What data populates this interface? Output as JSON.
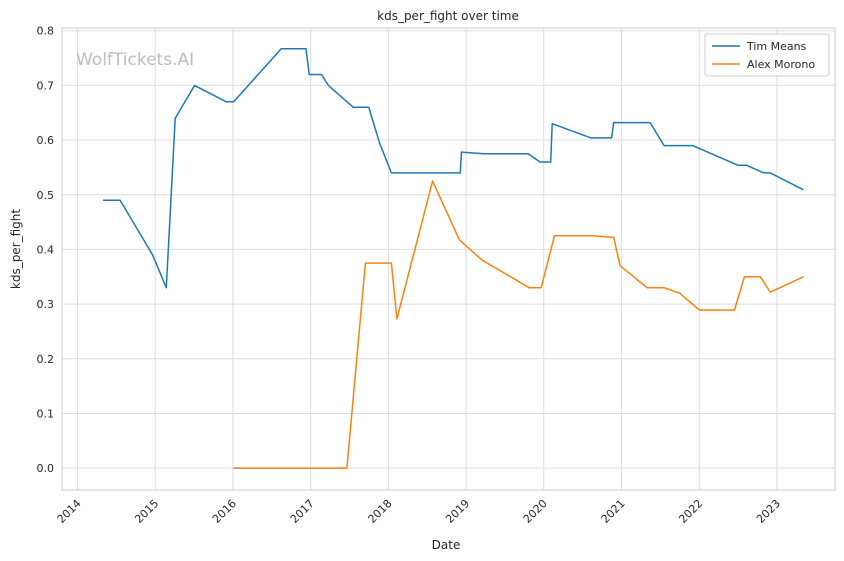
{
  "chart_data": {
    "type": "line",
    "title": "kds_per_fight over time",
    "xlabel": "Date",
    "ylabel": "kds_per_fight",
    "watermark": "WolfTickets.AI",
    "x_ticks": [
      "2014",
      "2015",
      "2016",
      "2017",
      "2018",
      "2019",
      "2020",
      "2021",
      "2022",
      "2023"
    ],
    "y_ticks": [
      "0.0",
      "0.1",
      "0.2",
      "0.3",
      "0.4",
      "0.5",
      "0.6",
      "0.7",
      "0.8"
    ],
    "xlim": [
      "2013-10-20",
      "2023-10-01"
    ],
    "ylim": [
      -0.04,
      0.805
    ],
    "grid": true,
    "legend_position": "top-right",
    "series": [
      {
        "name": "Tim Means",
        "color": "#1f77b4",
        "points": [
          [
            "2014-05-01",
            0.49
          ],
          [
            "2014-07-20",
            0.49
          ],
          [
            "2014-12-20",
            0.39
          ],
          [
            "2015-02-22",
            0.33
          ],
          [
            "2015-04-05",
            0.64
          ],
          [
            "2015-07-05",
            0.7
          ],
          [
            "2015-12-01",
            0.67
          ],
          [
            "2016-01-05",
            0.67
          ],
          [
            "2016-08-15",
            0.767
          ],
          [
            "2016-12-10",
            0.767
          ],
          [
            "2016-12-25",
            0.72
          ],
          [
            "2017-02-20",
            0.72
          ],
          [
            "2017-03-25",
            0.7
          ],
          [
            "2017-07-20",
            0.66
          ],
          [
            "2017-10-01",
            0.66
          ],
          [
            "2017-11-20",
            0.595
          ],
          [
            "2018-01-15",
            0.54
          ],
          [
            "2018-12-05",
            0.54
          ],
          [
            "2018-12-10",
            0.578
          ],
          [
            "2019-03-25",
            0.575
          ],
          [
            "2019-10-20",
            0.575
          ],
          [
            "2019-12-15",
            0.56
          ],
          [
            "2020-02-03",
            0.56
          ],
          [
            "2020-02-10",
            0.63
          ],
          [
            "2020-08-10",
            0.604
          ],
          [
            "2020-11-15",
            0.604
          ],
          [
            "2020-11-25",
            0.632
          ],
          [
            "2021-05-15",
            0.632
          ],
          [
            "2021-07-20",
            0.59
          ],
          [
            "2021-12-01",
            0.59
          ],
          [
            "2022-07-01",
            0.554
          ],
          [
            "2022-08-10",
            0.554
          ],
          [
            "2022-11-01",
            0.54
          ],
          [
            "2022-12-01",
            0.54
          ],
          [
            "2023-05-06",
            0.509
          ]
        ]
      },
      {
        "name": "Alex Morono",
        "color": "#ff7f0e",
        "points": [
          [
            "2016-01-01",
            0.0
          ],
          [
            "2017-06-20",
            0.0
          ],
          [
            "2017-09-15",
            0.375
          ],
          [
            "2018-01-15",
            0.375
          ],
          [
            "2018-02-10",
            0.273
          ],
          [
            "2018-07-28",
            0.525
          ],
          [
            "2018-12-01",
            0.417
          ],
          [
            "2019-03-20",
            0.38
          ],
          [
            "2019-10-25",
            0.33
          ],
          [
            "2019-12-20",
            0.33
          ],
          [
            "2020-02-20",
            0.425
          ],
          [
            "2020-08-15",
            0.425
          ],
          [
            "2020-11-25",
            0.422
          ],
          [
            "2020-12-25",
            0.37
          ],
          [
            "2021-05-01",
            0.33
          ],
          [
            "2021-07-20",
            0.33
          ],
          [
            "2021-10-01",
            0.32
          ],
          [
            "2022-01-01",
            0.289
          ],
          [
            "2022-06-15",
            0.289
          ],
          [
            "2022-08-01",
            0.35
          ],
          [
            "2022-10-15",
            0.35
          ],
          [
            "2022-12-01",
            0.322
          ],
          [
            "2023-05-06",
            0.35
          ]
        ]
      }
    ]
  }
}
